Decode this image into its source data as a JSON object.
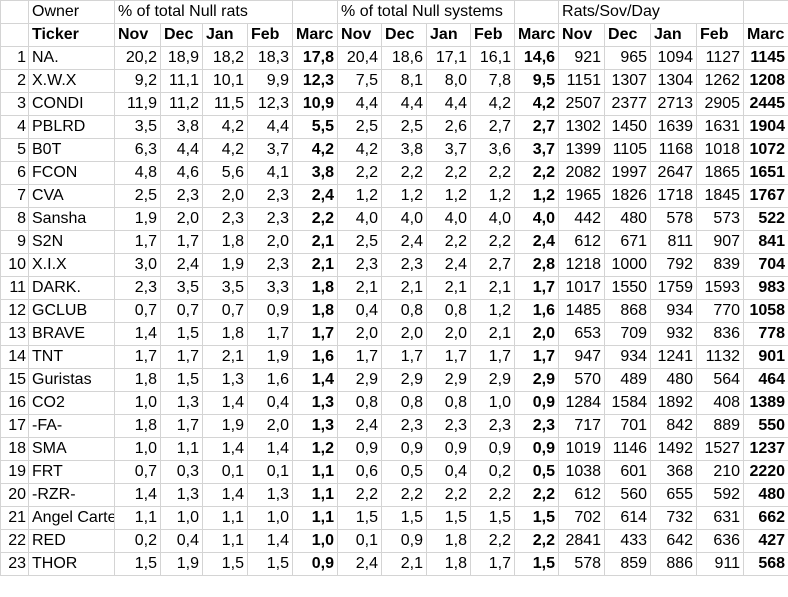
{
  "header_row1": {
    "owner": "Owner",
    "group1": "% of total Null rats",
    "group2": "% of total Null systems",
    "group3": "Rats/Sov/Day"
  },
  "header_row2": {
    "ticker": "Ticker",
    "months": [
      "Nov",
      "Dec",
      "Jan",
      "Feb",
      "Marc",
      "Nov",
      "Dec",
      "Jan",
      "Feb",
      "Marc",
      "Nov",
      "Dec",
      "Jan",
      "Feb",
      "Marc"
    ]
  },
  "rows": [
    {
      "n": "1",
      "t": "NA.",
      "v": [
        "20,2",
        "18,9",
        "18,2",
        "18,3",
        "17,8",
        "20,4",
        "18,6",
        "17,1",
        "16,1",
        "14,6",
        "921",
        "965",
        "1094",
        "1127",
        "1145"
      ]
    },
    {
      "n": "2",
      "t": "X.W.X",
      "v": [
        "9,2",
        "11,1",
        "10,1",
        "9,9",
        "12,3",
        "7,5",
        "8,1",
        "8,0",
        "7,8",
        "9,5",
        "1151",
        "1307",
        "1304",
        "1262",
        "1208"
      ]
    },
    {
      "n": "3",
      "t": "CONDI",
      "v": [
        "11,9",
        "11,2",
        "11,5",
        "12,3",
        "10,9",
        "4,4",
        "4,4",
        "4,4",
        "4,2",
        "4,2",
        "2507",
        "2377",
        "2713",
        "2905",
        "2445"
      ]
    },
    {
      "n": "4",
      "t": "PBLRD",
      "v": [
        "3,5",
        "3,8",
        "4,2",
        "4,4",
        "5,5",
        "2,5",
        "2,5",
        "2,6",
        "2,7",
        "2,7",
        "1302",
        "1450",
        "1639",
        "1631",
        "1904"
      ]
    },
    {
      "n": "5",
      "t": "B0T",
      "v": [
        "6,3",
        "4,4",
        "4,2",
        "3,7",
        "4,2",
        "4,2",
        "3,8",
        "3,7",
        "3,6",
        "3,7",
        "1399",
        "1105",
        "1168",
        "1018",
        "1072"
      ]
    },
    {
      "n": "6",
      "t": "FCON",
      "v": [
        "4,8",
        "4,6",
        "5,6",
        "4,1",
        "3,8",
        "2,2",
        "2,2",
        "2,2",
        "2,2",
        "2,2",
        "2082",
        "1997",
        "2647",
        "1865",
        "1651"
      ]
    },
    {
      "n": "7",
      "t": "CVA",
      "v": [
        "2,5",
        "2,3",
        "2,0",
        "2,3",
        "2,4",
        "1,2",
        "1,2",
        "1,2",
        "1,2",
        "1,2",
        "1965",
        "1826",
        "1718",
        "1845",
        "1767"
      ]
    },
    {
      "n": "8",
      "t": "Sansha",
      "v": [
        "1,9",
        "2,0",
        "2,3",
        "2,3",
        "2,2",
        "4,0",
        "4,0",
        "4,0",
        "4,0",
        "4,0",
        "442",
        "480",
        "578",
        "573",
        "522"
      ]
    },
    {
      "n": "9",
      "t": "S2N",
      "v": [
        "1,7",
        "1,7",
        "1,8",
        "2,0",
        "2,1",
        "2,5",
        "2,4",
        "2,2",
        "2,2",
        "2,4",
        "612",
        "671",
        "811",
        "907",
        "841"
      ]
    },
    {
      "n": "10",
      "t": "X.I.X",
      "v": [
        "3,0",
        "2,4",
        "1,9",
        "2,3",
        "2,1",
        "2,3",
        "2,3",
        "2,4",
        "2,7",
        "2,8",
        "1218",
        "1000",
        "792",
        "839",
        "704"
      ]
    },
    {
      "n": "11",
      "t": "DARK.",
      "v": [
        "2,3",
        "3,5",
        "3,5",
        "3,3",
        "1,8",
        "2,1",
        "2,1",
        "2,1",
        "2,1",
        "1,7",
        "1017",
        "1550",
        "1759",
        "1593",
        "983"
      ]
    },
    {
      "n": "12",
      "t": "GCLUB",
      "v": [
        "0,7",
        "0,7",
        "0,7",
        "0,9",
        "1,8",
        "0,4",
        "0,8",
        "0,8",
        "1,2",
        "1,6",
        "1485",
        "868",
        "934",
        "770",
        "1058"
      ]
    },
    {
      "n": "13",
      "t": "BRAVE",
      "v": [
        "1,4",
        "1,5",
        "1,8",
        "1,7",
        "1,7",
        "2,0",
        "2,0",
        "2,0",
        "2,1",
        "2,0",
        "653",
        "709",
        "932",
        "836",
        "778"
      ]
    },
    {
      "n": "14",
      "t": "TNT",
      "v": [
        "1,7",
        "1,7",
        "2,1",
        "1,9",
        "1,6",
        "1,7",
        "1,7",
        "1,7",
        "1,7",
        "1,7",
        "947",
        "934",
        "1241",
        "1132",
        "901"
      ]
    },
    {
      "n": "15",
      "t": "Guristas",
      "v": [
        "1,8",
        "1,5",
        "1,3",
        "1,6",
        "1,4",
        "2,9",
        "2,9",
        "2,9",
        "2,9",
        "2,9",
        "570",
        "489",
        "480",
        "564",
        "464"
      ]
    },
    {
      "n": "16",
      "t": "CO2",
      "v": [
        "1,0",
        "1,3",
        "1,4",
        "0,4",
        "1,3",
        "0,8",
        "0,8",
        "0,8",
        "1,0",
        "0,9",
        "1284",
        "1584",
        "1892",
        "408",
        "1389"
      ]
    },
    {
      "n": "17",
      "t": "-FA-",
      "v": [
        "1,8",
        "1,7",
        "1,9",
        "2,0",
        "1,3",
        "2,4",
        "2,3",
        "2,3",
        "2,3",
        "2,3",
        "717",
        "701",
        "842",
        "889",
        "550"
      ]
    },
    {
      "n": "18",
      "t": "SMA",
      "v": [
        "1,0",
        "1,1",
        "1,4",
        "1,4",
        "1,2",
        "0,9",
        "0,9",
        "0,9",
        "0,9",
        "0,9",
        "1019",
        "1146",
        "1492",
        "1527",
        "1237"
      ]
    },
    {
      "n": "19",
      "t": "FRT",
      "v": [
        "0,7",
        "0,3",
        "0,1",
        "0,1",
        "1,1",
        "0,6",
        "0,5",
        "0,4",
        "0,2",
        "0,5",
        "1038",
        "601",
        "368",
        "210",
        "2220"
      ]
    },
    {
      "n": "20",
      "t": "-RZR-",
      "v": [
        "1,4",
        "1,3",
        "1,4",
        "1,3",
        "1,1",
        "2,2",
        "2,2",
        "2,2",
        "2,2",
        "2,2",
        "612",
        "560",
        "655",
        "592",
        "480"
      ]
    },
    {
      "n": "21",
      "t": "Angel Carte",
      "v": [
        "1,1",
        "1,0",
        "1,1",
        "1,0",
        "1,1",
        "1,5",
        "1,5",
        "1,5",
        "1,5",
        "1,5",
        "702",
        "614",
        "732",
        "631",
        "662"
      ]
    },
    {
      "n": "22",
      "t": "RED",
      "v": [
        "0,2",
        "0,4",
        "1,1",
        "1,4",
        "1,0",
        "0,1",
        "0,9",
        "1,8",
        "2,2",
        "2,2",
        "2841",
        "433",
        "642",
        "636",
        "427"
      ]
    },
    {
      "n": "23",
      "t": "THOR",
      "v": [
        "1,5",
        "1,9",
        "1,5",
        "1,5",
        "0,9",
        "2,4",
        "2,1",
        "1,8",
        "1,7",
        "1,5",
        "578",
        "859",
        "886",
        "911",
        "568"
      ]
    }
  ]
}
